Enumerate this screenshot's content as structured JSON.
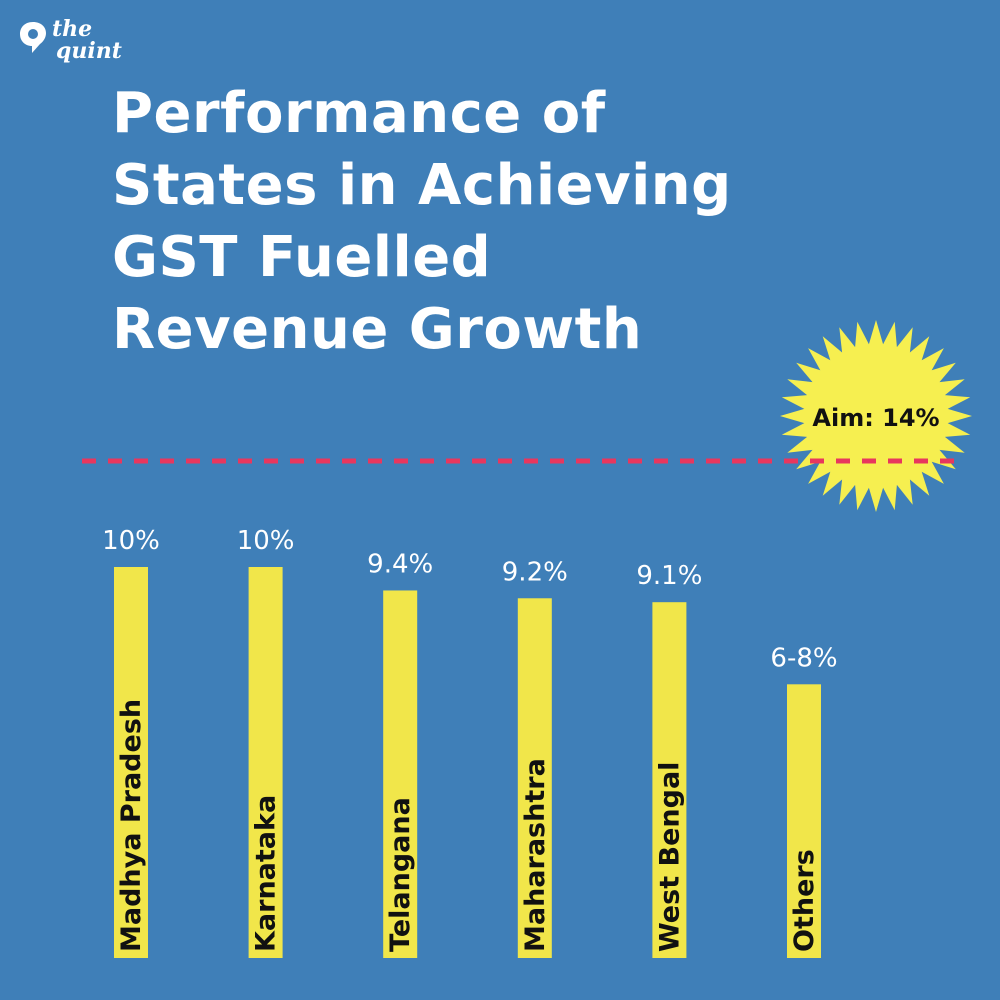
{
  "brand": {
    "line1": "the",
    "line2": "quint"
  },
  "chart_data": {
    "type": "bar",
    "title_lines": [
      "Performance of",
      "States in Achieving",
      "GST Fuelled",
      "Revenue Growth"
    ],
    "categories": [
      "Madhya Pradesh",
      "Karnataka",
      "Telangana",
      "Maharashtra",
      "West Bengal",
      "Others"
    ],
    "values": [
      10,
      10,
      9.4,
      9.2,
      9.1,
      7
    ],
    "value_labels": [
      "10%",
      "10%",
      "9.4%",
      "9.2%",
      "9.1%",
      "6-8%"
    ],
    "target": {
      "value": 14,
      "label": "Aim: 14%"
    },
    "colors": {
      "background": "#3f7fb8",
      "bar": "#f1e64a",
      "target_line": "#e8375e",
      "burst": "#f6ef50",
      "text": "#ffffff",
      "bar_text": "#111111"
    },
    "grid": false
  }
}
